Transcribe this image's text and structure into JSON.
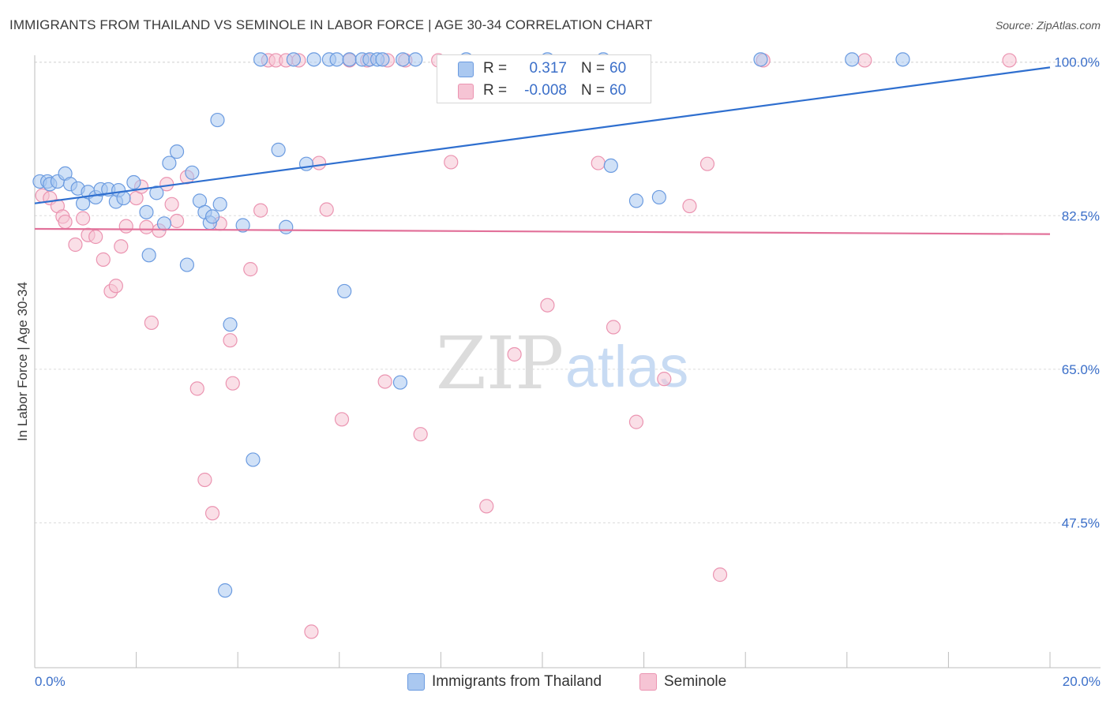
{
  "header": {
    "title": "IMMIGRANTS FROM THAILAND VS SEMINOLE IN LABOR FORCE | AGE 30-34 CORRELATION CHART",
    "source": "Source: ZipAtlas.com"
  },
  "watermark": {
    "zip": "ZIP",
    "atlas": "atlas"
  },
  "colors": {
    "blue_fill": "#aac8f0",
    "blue_stroke": "#6b9be0",
    "blue_line": "#2f6fcf",
    "pink_fill": "#f6c4d4",
    "pink_stroke": "#eb94b1",
    "pink_line": "#e2719a",
    "tick_text": "#3b6fc9",
    "grid": "#dcdcdc"
  },
  "legend": {
    "rows": [
      {
        "r_label": "R =",
        "r_value": "0.317",
        "n_label": "N =",
        "n_value": "60",
        "color": "#aac8f0"
      },
      {
        "r_label": "R =",
        "r_value": "-0.008",
        "n_label": "N =",
        "n_value": "60",
        "color": "#f6c4d4"
      }
    ]
  },
  "bottom_legend": {
    "items": [
      {
        "label": "Immigrants from Thailand",
        "color": "#aac8f0"
      },
      {
        "label": "Seminole",
        "color": "#f6c4d4"
      }
    ]
  },
  "chart_data": {
    "type": "scatter",
    "title": "IMMIGRANTS FROM THAILAND VS SEMINOLE IN LABOR FORCE | AGE 30-34 CORRELATION CHART",
    "xlabel": "",
    "ylabel": "In Labor Force | Age 30-34",
    "xlim": [
      0,
      20
    ],
    "ylim": [
      31,
      101.5
    ],
    "x_tick_labels": [
      "0.0%",
      "20.0%"
    ],
    "y_ticks": [
      {
        "value": 100.0,
        "label": "100.0%"
      },
      {
        "value": 82.5,
        "label": "82.5%"
      },
      {
        "value": 65.0,
        "label": "65.0%"
      },
      {
        "value": 47.5,
        "label": "47.5%"
      }
    ],
    "grid": true,
    "series": [
      {
        "name": "Immigrants from Thailand",
        "r": 0.317,
        "n": 60,
        "trend": {
          "x": [
            0,
            20
          ],
          "y": [
            83.9,
            99.4
          ]
        },
        "points": [
          [
            0.1,
            86.4
          ],
          [
            0.25,
            86.4
          ],
          [
            0.3,
            86.1
          ],
          [
            0.45,
            86.4
          ],
          [
            0.6,
            87.3
          ],
          [
            0.7,
            86.1
          ],
          [
            0.85,
            85.6
          ],
          [
            0.95,
            83.9
          ],
          [
            1.05,
            85.2
          ],
          [
            1.2,
            84.6
          ],
          [
            1.3,
            85.5
          ],
          [
            1.45,
            85.5
          ],
          [
            1.6,
            84.1
          ],
          [
            1.65,
            85.4
          ],
          [
            1.75,
            84.5
          ],
          [
            1.95,
            86.3
          ],
          [
            2.2,
            82.9
          ],
          [
            2.25,
            78.0
          ],
          [
            2.4,
            85.1
          ],
          [
            2.55,
            81.6
          ],
          [
            2.65,
            88.5
          ],
          [
            2.8,
            89.8
          ],
          [
            3.0,
            76.9
          ],
          [
            3.1,
            87.4
          ],
          [
            3.25,
            84.2
          ],
          [
            3.35,
            82.9
          ],
          [
            3.45,
            81.7
          ],
          [
            3.5,
            82.4
          ],
          [
            3.6,
            93.4
          ],
          [
            3.65,
            83.8
          ],
          [
            3.85,
            70.1
          ],
          [
            3.75,
            39.8
          ],
          [
            4.1,
            81.4
          ],
          [
            4.3,
            54.7
          ],
          [
            4.45,
            100.3
          ],
          [
            4.8,
            90.0
          ],
          [
            4.95,
            81.2
          ],
          [
            5.1,
            100.3
          ],
          [
            5.35,
            88.4
          ],
          [
            5.5,
            100.3
          ],
          [
            5.8,
            100.3
          ],
          [
            5.95,
            100.3
          ],
          [
            6.1,
            73.9
          ],
          [
            6.2,
            100.3
          ],
          [
            6.45,
            100.3
          ],
          [
            6.6,
            100.3
          ],
          [
            6.75,
            100.3
          ],
          [
            6.85,
            100.3
          ],
          [
            7.2,
            63.5
          ],
          [
            7.25,
            100.3
          ],
          [
            7.5,
            100.3
          ],
          [
            8.5,
            100.3
          ],
          [
            10.1,
            100.3
          ],
          [
            11.2,
            100.3
          ],
          [
            11.35,
            88.2
          ],
          [
            11.85,
            84.2
          ],
          [
            12.3,
            84.6
          ],
          [
            14.3,
            100.3
          ],
          [
            16.1,
            100.3
          ],
          [
            17.1,
            100.3
          ]
        ]
      },
      {
        "name": "Seminole",
        "r": -0.008,
        "n": 60,
        "trend": {
          "x": [
            0,
            20
          ],
          "y": [
            81.0,
            80.4
          ]
        },
        "points": [
          [
            0.15,
            84.8
          ],
          [
            0.3,
            84.5
          ],
          [
            0.45,
            83.6
          ],
          [
            0.55,
            82.4
          ],
          [
            0.6,
            81.8
          ],
          [
            0.8,
            79.2
          ],
          [
            0.95,
            82.2
          ],
          [
            1.05,
            80.3
          ],
          [
            1.2,
            80.1
          ],
          [
            1.35,
            77.5
          ],
          [
            1.5,
            73.9
          ],
          [
            1.6,
            74.5
          ],
          [
            1.7,
            79.0
          ],
          [
            1.8,
            81.3
          ],
          [
            2.0,
            84.5
          ],
          [
            2.1,
            85.8
          ],
          [
            2.2,
            81.2
          ],
          [
            2.3,
            70.3
          ],
          [
            2.45,
            80.8
          ],
          [
            2.6,
            86.1
          ],
          [
            2.7,
            83.8
          ],
          [
            2.8,
            81.9
          ],
          [
            3.0,
            86.9
          ],
          [
            3.2,
            62.8
          ],
          [
            3.35,
            52.4
          ],
          [
            3.5,
            48.6
          ],
          [
            3.65,
            81.6
          ],
          [
            3.85,
            68.3
          ],
          [
            3.9,
            63.4
          ],
          [
            4.25,
            76.4
          ],
          [
            4.45,
            83.1
          ],
          [
            4.6,
            100.2
          ],
          [
            4.75,
            100.2
          ],
          [
            4.95,
            100.2
          ],
          [
            5.2,
            100.2
          ],
          [
            5.45,
            35.1
          ],
          [
            5.6,
            88.5
          ],
          [
            5.75,
            83.2
          ],
          [
            6.05,
            59.3
          ],
          [
            6.2,
            100.2
          ],
          [
            6.55,
            100.2
          ],
          [
            6.9,
            63.6
          ],
          [
            6.95,
            100.2
          ],
          [
            7.3,
            100.2
          ],
          [
            7.6,
            57.6
          ],
          [
            7.95,
            100.2
          ],
          [
            8.2,
            88.6
          ],
          [
            8.9,
            49.4
          ],
          [
            9.45,
            66.7
          ],
          [
            10.1,
            72.3
          ],
          [
            11.1,
            88.5
          ],
          [
            11.4,
            69.8
          ],
          [
            11.85,
            59.0
          ],
          [
            12.4,
            63.9
          ],
          [
            12.9,
            83.6
          ],
          [
            13.25,
            88.4
          ],
          [
            13.5,
            41.6
          ],
          [
            14.35,
            100.2
          ],
          [
            16.35,
            100.2
          ],
          [
            19.2,
            100.2
          ]
        ]
      }
    ]
  }
}
